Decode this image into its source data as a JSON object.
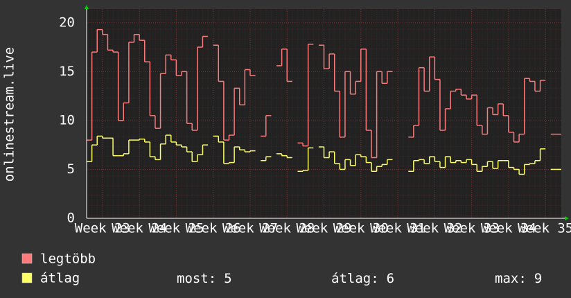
{
  "chart_data": {
    "type": "line",
    "step": true,
    "y_label": "onlinestream.live",
    "x": [
      0,
      1,
      2,
      3,
      4,
      5,
      6,
      7,
      8,
      9,
      10,
      11,
      12,
      13,
      14,
      15,
      16,
      17,
      18,
      19,
      20,
      21,
      22,
      23,
      24,
      25,
      26,
      27,
      28,
      29,
      30,
      31,
      32,
      33,
      34,
      35,
      36,
      37,
      38,
      39,
      40,
      41,
      42,
      43,
      44,
      45,
      46,
      47,
      48,
      49,
      50,
      51,
      52,
      53,
      54,
      55,
      56,
      57,
      58,
      59,
      60,
      61,
      62,
      63,
      64,
      65,
      66,
      67,
      68,
      69,
      70,
      71,
      72,
      73,
      74,
      75,
      76,
      77,
      78,
      79,
      80,
      81,
      82,
      83,
      84,
      85,
      86,
      87,
      88,
      89
    ],
    "series": [
      {
        "name": "legtöbb",
        "color": "#ff7b7b",
        "values": [
          8,
          17,
          19.3,
          18.8,
          17.2,
          17,
          10,
          11.8,
          18,
          18.8,
          18.2,
          16,
          10.5,
          9.2,
          14.8,
          16.7,
          16.2,
          14.6,
          15,
          9.7,
          9,
          17.5,
          18.6,
          null,
          17.7,
          14,
          8,
          8.5,
          13.3,
          11.6,
          15.2,
          14.6,
          null,
          8.4,
          10.5,
          null,
          15.6,
          17.3,
          14,
          null,
          7.7,
          7.4,
          17.8,
          null,
          17.7,
          15.3,
          16.8,
          13,
          8.3,
          15,
          12.7,
          14,
          17.3,
          9,
          6.2,
          15,
          13.8,
          15,
          null,
          null,
          null,
          8.3,
          9.5,
          15.4,
          13,
          16.5,
          14.2,
          9,
          11.2,
          13,
          13.2,
          12.6,
          12.2,
          12.6,
          9.5,
          8.6,
          11.3,
          10.6,
          11.7,
          10.5,
          8.8,
          7.8,
          8.6,
          14.3,
          14,
          13,
          14.1,
          null,
          8.6,
          8.6
        ]
      },
      {
        "name": "átlag",
        "color": "#ffff66",
        "values": [
          5.8,
          7.5,
          8.4,
          8.2,
          8.2,
          6.4,
          6.4,
          6.6,
          8,
          8,
          8.1,
          7.8,
          6.3,
          6,
          7.6,
          8.5,
          7.8,
          7.5,
          7.3,
          6.8,
          5.8,
          6.5,
          7.5,
          null,
          8.4,
          7.8,
          5.6,
          5.7,
          7.3,
          7,
          6.8,
          6.9,
          null,
          5.9,
          6.3,
          null,
          6.6,
          6.4,
          6.2,
          null,
          4.8,
          4.9,
          7.2,
          null,
          7.3,
          6.2,
          6.8,
          5.6,
          5,
          6,
          5.4,
          6.5,
          6.3,
          5.7,
          4.8,
          5.3,
          5.5,
          6,
          null,
          null,
          null,
          4.8,
          5.9,
          6,
          5.6,
          6.3,
          5.8,
          5.2,
          6.3,
          5.7,
          5.9,
          5.7,
          6,
          5.5,
          4.8,
          5.3,
          5.8,
          5.1,
          5.9,
          5.9,
          5.2,
          5,
          4.5,
          5.5,
          5.6,
          5.9,
          7.1,
          null,
          5,
          5
        ]
      }
    ],
    "xlim": [
      0,
      90
    ],
    "xticks": [
      {
        "value": 3,
        "label": "Week 23"
      },
      {
        "value": 10,
        "label": "Week 24"
      },
      {
        "value": 17,
        "label": "Week 25"
      },
      {
        "value": 24,
        "label": "Week 26"
      },
      {
        "value": 31,
        "label": "Week 27"
      },
      {
        "value": 38,
        "label": "Week 28"
      },
      {
        "value": 45,
        "label": "Week 29"
      },
      {
        "value": 52,
        "label": "Week 30"
      },
      {
        "value": 59,
        "label": "Week 31"
      },
      {
        "value": 66,
        "label": "Week 32"
      },
      {
        "value": 73,
        "label": "Week 33"
      },
      {
        "value": 80,
        "label": "Week 34"
      },
      {
        "value": 87,
        "label": "Week 35"
      }
    ],
    "ylim": [
      0,
      21.4
    ],
    "yticks": [
      0,
      5,
      10,
      15,
      20
    ],
    "grid": true,
    "stats": [
      {
        "label": "most:",
        "value": 5
      },
      {
        "label": "átlag:",
        "value": 6
      },
      {
        "label": "max:",
        "value": 9
      }
    ]
  }
}
